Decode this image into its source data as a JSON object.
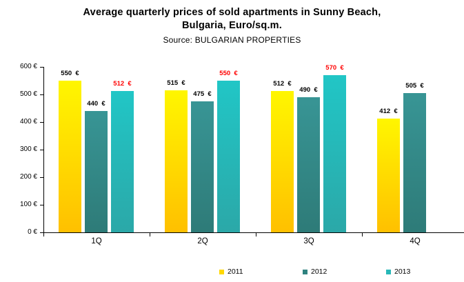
{
  "title": {
    "line1": "Average quarterly prices of sold apartments in Sunny Beach,",
    "line2": "Bulgaria, Euro/sq.m.",
    "source": "Source: BULGARIAN PROPERTIES"
  },
  "chart_data": {
    "type": "bar",
    "title": "Average quarterly prices of sold apartments in Sunny Beach, Bulgaria, Euro/sq.m.",
    "subtitle": "Source: BULGARIAN PROPERTIES",
    "categories": [
      "1Q",
      "2Q",
      "3Q",
      "4Q"
    ],
    "series": [
      {
        "name": "2011",
        "values": [
          550,
          515,
          512,
          412
        ],
        "color_top": "#FFF600",
        "color_bottom": "#FFC000",
        "legend_color": "#FFD800",
        "label_color": "#000000"
      },
      {
        "name": "2012",
        "values": [
          440,
          475,
          490,
          505
        ],
        "color_top": "#389595",
        "color_bottom": "#2E7B78",
        "legend_color": "#2F827F",
        "label_color": "#000000"
      },
      {
        "name": "2013",
        "values": [
          512,
          550,
          570,
          null
        ],
        "color_top": "#21C6C6",
        "color_bottom": "#2BA8A8",
        "legend_color": "#28B8B8",
        "label_color": "#FF0000"
      }
    ],
    "value_suffix": "  €",
    "xlabel": "",
    "ylabel": "",
    "ylim": [
      0,
      600
    ],
    "ytick_step": 100,
    "yticks": [
      "0 €",
      "100 €",
      "200 €",
      "300 €",
      "400 €",
      "500 €",
      "600 €"
    ],
    "grid": false,
    "legend_position": "bottom"
  }
}
